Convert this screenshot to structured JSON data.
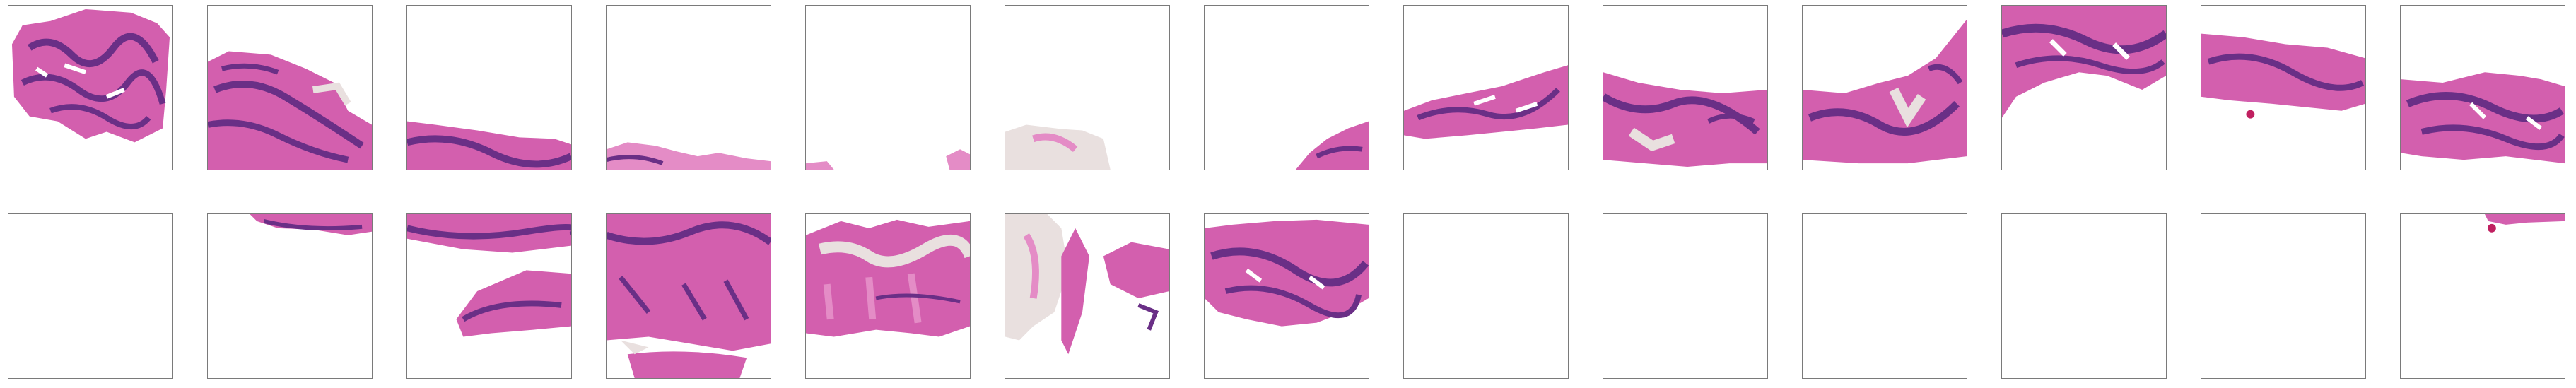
{
  "grid": {
    "rows": 2,
    "columns": 13
  },
  "colors": {
    "tissue": "#d35fae",
    "tissue_light": "#e48cc6",
    "nuclei": "#6a2f86",
    "fat": "#e9e0df",
    "border": "#7a7a7a"
  },
  "tiles": [
    {
      "id": "r1c1",
      "content": "tissue"
    },
    {
      "id": "r1c2",
      "content": "tissue"
    },
    {
      "id": "r1c3",
      "content": "tissue"
    },
    {
      "id": "r1c4",
      "content": "tissue"
    },
    {
      "id": "r1c5",
      "content": "tissue"
    },
    {
      "id": "r1c6",
      "content": "tissue"
    },
    {
      "id": "r1c7",
      "content": "tissue"
    },
    {
      "id": "r1c8",
      "content": "tissue"
    },
    {
      "id": "r1c9",
      "content": "tissue"
    },
    {
      "id": "r1c10",
      "content": "tissue"
    },
    {
      "id": "r1c11",
      "content": "tissue"
    },
    {
      "id": "r1c12",
      "content": "tissue"
    },
    {
      "id": "r1c13",
      "content": "tissue"
    },
    {
      "id": "r2c1",
      "content": "empty"
    },
    {
      "id": "r2c2",
      "content": "tissue"
    },
    {
      "id": "r2c3",
      "content": "tissue"
    },
    {
      "id": "r2c4",
      "content": "tissue"
    },
    {
      "id": "r2c5",
      "content": "tissue"
    },
    {
      "id": "r2c6",
      "content": "tissue"
    },
    {
      "id": "r2c7",
      "content": "tissue"
    },
    {
      "id": "r2c8",
      "content": "empty"
    },
    {
      "id": "r2c9",
      "content": "empty"
    },
    {
      "id": "r2c10",
      "content": "empty"
    },
    {
      "id": "r2c11",
      "content": "empty"
    },
    {
      "id": "r2c12",
      "content": "empty"
    },
    {
      "id": "r2c13",
      "content": "tissue"
    }
  ]
}
